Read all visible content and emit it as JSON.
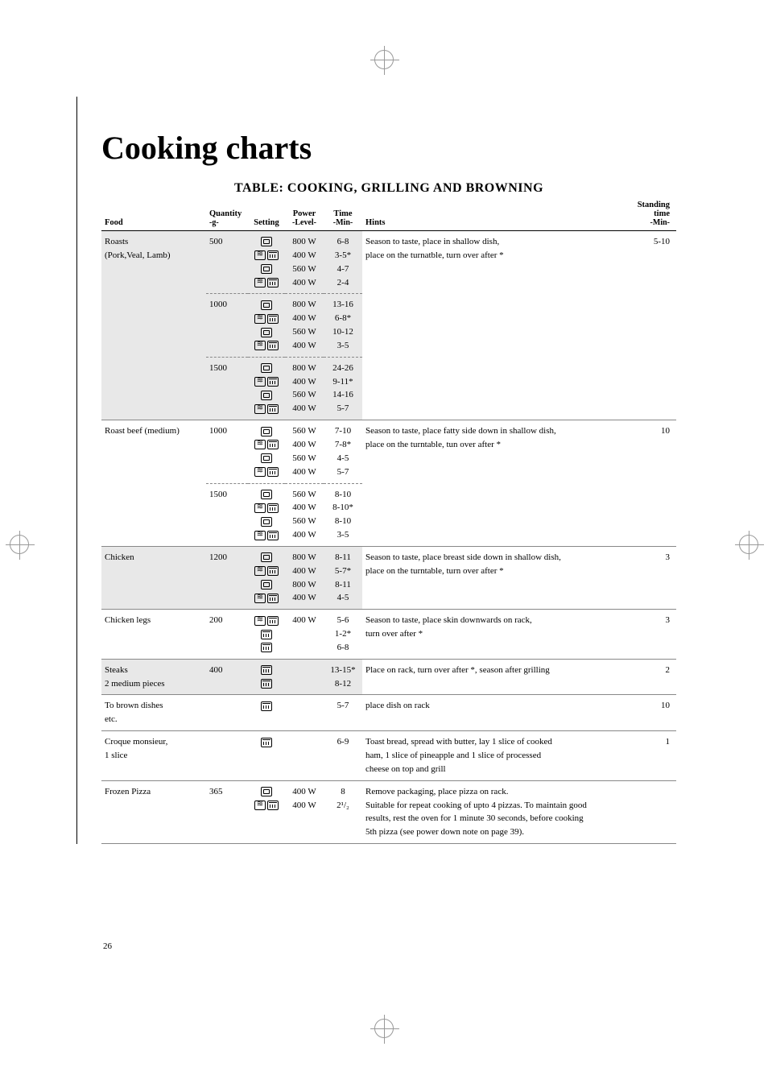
{
  "page": {
    "number": "26",
    "title": "Cooking charts",
    "table_title": "TABLE: COOKING, GRILLING AND BROWNING"
  },
  "columns": {
    "food": "Food",
    "qty": "Quantity",
    "qty_sub": "-g-",
    "setting": "Setting",
    "power": "Power",
    "power_sub": "-Level-",
    "time": "Time",
    "time_sub": "-Min-",
    "hints": "Hints",
    "stand": "Standing time",
    "stand_sub": "-Min-"
  },
  "icons": {
    "micro": "microwave-icon",
    "wave": "wave-icon",
    "grill": "grill-icon"
  },
  "rows": [
    {
      "shade": true,
      "sep": "none",
      "cls": "group-start",
      "food": "Roasts",
      "qty": "500",
      "set": [
        "micro"
      ],
      "power": "800 W",
      "time": "6-8",
      "hints": "Season to taste, place in shallow dish,",
      "stand": "5-10"
    },
    {
      "shade": true,
      "sep": "none",
      "food": "(Pork,Veal, Lamb)",
      "qty": "",
      "set": [
        "wave",
        "grill"
      ],
      "power": "400 W",
      "time": "3-5*",
      "hints": "place on the turnatble, turn over after *",
      "stand": ""
    },
    {
      "shade": true,
      "sep": "none",
      "food": "",
      "qty": "",
      "set": [
        "micro"
      ],
      "power": "560 W",
      "time": "4-7",
      "hints": "",
      "stand": ""
    },
    {
      "shade": true,
      "sep": "dash",
      "cls": "group-end",
      "food": "",
      "qty": "",
      "set": [
        "wave",
        "grill"
      ],
      "power": "400 W",
      "time": "2-4",
      "hints": "",
      "stand": ""
    },
    {
      "shade": true,
      "sep": "none",
      "cls": "group-start",
      "food": "",
      "qty": "1000",
      "set": [
        "micro"
      ],
      "power": "800 W",
      "time": "13-16",
      "hints": "",
      "stand": ""
    },
    {
      "shade": true,
      "sep": "none",
      "food": "",
      "qty": "",
      "set": [
        "wave",
        "grill"
      ],
      "power": "400 W",
      "time": "6-8*",
      "hints": "",
      "stand": ""
    },
    {
      "shade": true,
      "sep": "none",
      "food": "",
      "qty": "",
      "set": [
        "micro"
      ],
      "power": "560 W",
      "time": "10-12",
      "hints": "",
      "stand": ""
    },
    {
      "shade": true,
      "sep": "dash",
      "cls": "group-end",
      "food": "",
      "qty": "",
      "set": [
        "wave",
        "grill"
      ],
      "power": "400 W",
      "time": "3-5",
      "hints": "",
      "stand": ""
    },
    {
      "shade": true,
      "sep": "none",
      "cls": "group-start",
      "food": "",
      "qty": "1500",
      "set": [
        "micro"
      ],
      "power": "800 W",
      "time": "24-26",
      "hints": "",
      "stand": ""
    },
    {
      "shade": true,
      "sep": "none",
      "food": "",
      "qty": "",
      "set": [
        "wave",
        "grill"
      ],
      "power": "400 W",
      "time": "9-11*",
      "hints": "",
      "stand": ""
    },
    {
      "shade": true,
      "sep": "none",
      "food": "",
      "qty": "",
      "set": [
        "micro"
      ],
      "power": "560 W",
      "time": "14-16",
      "hints": "",
      "stand": ""
    },
    {
      "shade": true,
      "sep": "solid",
      "cls": "group-end",
      "food": "",
      "qty": "",
      "set": [
        "wave",
        "grill"
      ],
      "power": "400 W",
      "time": "5-7",
      "hints": "",
      "stand": ""
    },
    {
      "shade": false,
      "sep": "none",
      "cls": "group-start",
      "food": "Roast beef (medium)",
      "qty": "1000",
      "set": [
        "micro"
      ],
      "power": "560 W",
      "time": "7-10",
      "hints": "Season to taste, place fatty side down in shallow dish,",
      "stand": "10"
    },
    {
      "shade": false,
      "sep": "none",
      "food": "",
      "qty": "",
      "set": [
        "wave",
        "grill"
      ],
      "power": "400 W",
      "time": "7-8*",
      "hints": "place on the turntable, tun over after *",
      "stand": ""
    },
    {
      "shade": false,
      "sep": "none",
      "food": "",
      "qty": "",
      "set": [
        "micro"
      ],
      "power": "560 W",
      "time": "4-5",
      "hints": "",
      "stand": ""
    },
    {
      "shade": false,
      "sep": "dash",
      "cls": "group-end",
      "food": "",
      "qty": "",
      "set": [
        "wave",
        "grill"
      ],
      "power": "400 W",
      "time": "5-7",
      "hints": "",
      "stand": ""
    },
    {
      "shade": false,
      "sep": "none",
      "cls": "group-start",
      "food": "",
      "qty": "1500",
      "set": [
        "micro"
      ],
      "power": "560 W",
      "time": "8-10",
      "hints": "",
      "stand": ""
    },
    {
      "shade": false,
      "sep": "none",
      "food": "",
      "qty": "",
      "set": [
        "wave",
        "grill"
      ],
      "power": "400 W",
      "time": "8-10*",
      "hints": "",
      "stand": ""
    },
    {
      "shade": false,
      "sep": "none",
      "food": "",
      "qty": "",
      "set": [
        "micro"
      ],
      "power": "560 W",
      "time": "8-10",
      "hints": "",
      "stand": ""
    },
    {
      "shade": false,
      "sep": "solid",
      "cls": "group-end",
      "food": "",
      "qty": "",
      "set": [
        "wave",
        "grill"
      ],
      "power": "400 W",
      "time": "3-5",
      "hints": "",
      "stand": ""
    },
    {
      "shade": true,
      "sep": "none",
      "cls": "group-start",
      "food": "Chicken",
      "qty": "1200",
      "set": [
        "micro"
      ],
      "power": "800 W",
      "time": "8-11",
      "hints": "Season to taste, place breast side down in shallow dish,",
      "stand": "3"
    },
    {
      "shade": true,
      "sep": "none",
      "food": "",
      "qty": "",
      "set": [
        "wave",
        "grill"
      ],
      "power": "400 W",
      "time": "5-7*",
      "hints": "place on the turntable, turn over after *",
      "stand": ""
    },
    {
      "shade": true,
      "sep": "none",
      "food": "",
      "qty": "",
      "set": [
        "micro"
      ],
      "power": "800 W",
      "time": "8-11",
      "hints": "",
      "stand": ""
    },
    {
      "shade": true,
      "sep": "solid",
      "cls": "group-end",
      "food": "",
      "qty": "",
      "set": [
        "wave",
        "grill"
      ],
      "power": "400 W",
      "time": "4-5",
      "hints": "",
      "stand": ""
    },
    {
      "shade": false,
      "sep": "none",
      "cls": "group-start",
      "food": "Chicken legs",
      "qty": "200",
      "set": [
        "wave",
        "grill"
      ],
      "power": "400 W",
      "time": "5-6",
      "hints": "Season to taste, place skin downwards on rack,",
      "stand": "3"
    },
    {
      "shade": false,
      "sep": "none",
      "food": "",
      "qty": "",
      "set": [
        "grill"
      ],
      "power": "",
      "time": "1-2*",
      "hints": "turn over after *",
      "stand": ""
    },
    {
      "shade": false,
      "sep": "solid",
      "cls": "group-end",
      "food": "",
      "qty": "",
      "set": [
        "grill"
      ],
      "power": "",
      "time": "6-8",
      "hints": "",
      "stand": ""
    },
    {
      "shade": true,
      "sep": "none",
      "cls": "group-start",
      "food": "Steaks",
      "qty": "400",
      "set": [
        "grill"
      ],
      "power": "",
      "time": "13-15*",
      "hints": "Place on rack, turn over after *, season after grilling",
      "stand": "2"
    },
    {
      "shade": true,
      "sep": "solid",
      "cls": "group-end",
      "food": "2 medium pieces",
      "qty": "",
      "set": [
        "grill"
      ],
      "power": "",
      "time": "8-12",
      "hints": "",
      "stand": ""
    },
    {
      "shade": false,
      "sep": "none",
      "cls": "group-start",
      "food": "To brown dishes",
      "qty": "",
      "set": [
        "grill"
      ],
      "power": "",
      "time": "5-7",
      "hints": "place dish on rack",
      "stand": "10"
    },
    {
      "shade": false,
      "sep": "solid",
      "cls": "group-end",
      "food": "etc.",
      "qty": "",
      "set": [],
      "power": "",
      "time": "",
      "hints": "",
      "stand": ""
    },
    {
      "shade": false,
      "sep": "none",
      "cls": "group-start",
      "food": "Croque monsieur,",
      "qty": "",
      "set": [
        "grill"
      ],
      "power": "",
      "time": "6-9",
      "hints": "Toast bread, spread with butter, lay 1 slice of cooked",
      "stand": "1"
    },
    {
      "shade": false,
      "sep": "none",
      "food": "1 slice",
      "qty": "",
      "set": [],
      "power": "",
      "time": "",
      "hints": "ham, 1 slice of pineapple and 1 slice of processed",
      "stand": ""
    },
    {
      "shade": false,
      "sep": "solid",
      "cls": "group-end",
      "food": "",
      "qty": "",
      "set": [],
      "power": "",
      "time": "",
      "hints": "cheese on top and grill",
      "stand": ""
    },
    {
      "shade": false,
      "sep": "none",
      "cls": "group-start",
      "food": "Frozen Pizza",
      "qty": "365",
      "set": [
        "micro"
      ],
      "power": "400 W",
      "time": "8",
      "hints": "Remove packaging, place pizza on rack.",
      "stand": ""
    },
    {
      "shade": false,
      "sep": "none",
      "food": "",
      "qty": "",
      "set": [
        "wave",
        "grill"
      ],
      "power": "400 W",
      "time": "2¹/₂",
      "hints": "Suitable for repeat cooking of upto 4 pizzas. To maintain good",
      "stand": ""
    },
    {
      "shade": false,
      "sep": "none",
      "food": "",
      "qty": "",
      "set": [],
      "power": "",
      "time": "",
      "hints": "results, rest the oven for 1 minute 30 seconds, before cooking",
      "stand": ""
    },
    {
      "shade": false,
      "sep": "solid",
      "cls": "group-end",
      "food": "",
      "qty": "",
      "set": [],
      "power": "",
      "time": "",
      "hints": "5th pizza (see power down note on page 39).",
      "stand": ""
    }
  ]
}
